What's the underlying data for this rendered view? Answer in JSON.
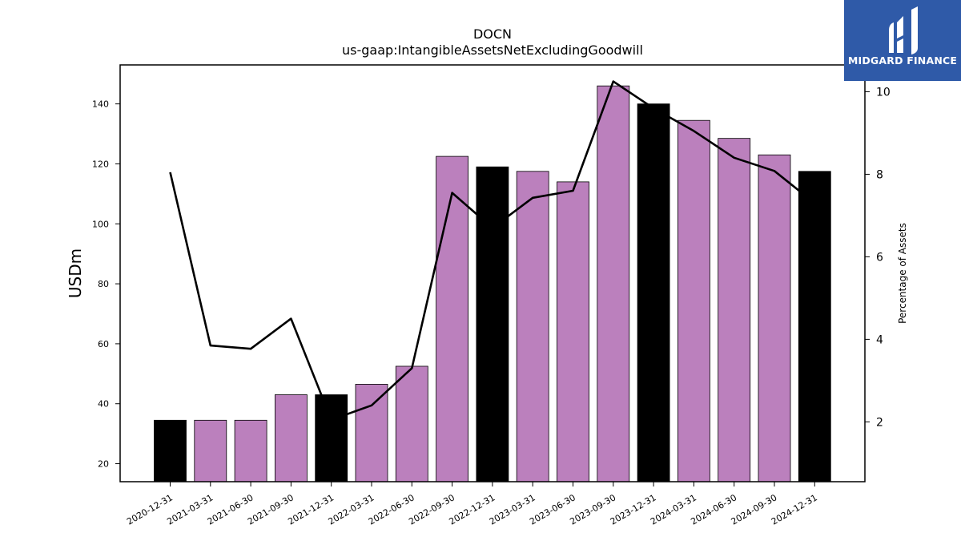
{
  "chart_data": {
    "type": "bar",
    "title": "DOCN",
    "subtitle": "us-gaap:IntangibleAssetsNetExcludingGoodwill",
    "ylabel": "USDm",
    "y2label": "Percentage of Assets",
    "ylim": [
      14,
      153
    ],
    "y2lim": [
      0.55,
      10.65
    ],
    "yticks": [
      20,
      40,
      60,
      80,
      100,
      120,
      140
    ],
    "y2ticks": [
      2,
      4,
      6,
      8,
      10
    ],
    "categories": [
      "2020-12-31",
      "2021-03-31",
      "2021-06-30",
      "2021-09-30",
      "2021-12-31",
      "2022-03-31",
      "2022-06-30",
      "2022-09-30",
      "2022-12-31",
      "2023-03-31",
      "2023-06-30",
      "2023-09-30",
      "2023-12-31",
      "2024-03-31",
      "2024-06-30",
      "2024-09-30",
      "2024-12-31"
    ],
    "series": [
      {
        "type": "bar",
        "values": [
          34.5,
          34.5,
          34.5,
          43,
          43,
          46.5,
          52.5,
          122.5,
          119,
          117.5,
          114,
          146,
          140,
          134.5,
          128.5,
          123,
          117.5
        ],
        "colors": [
          "#000000",
          "#bb80bd",
          "#bb80bd",
          "#bb80bd",
          "#000000",
          "#bb80bd",
          "#bb80bd",
          "#bb80bd",
          "#000000",
          "#bb80bd",
          "#bb80bd",
          "#bb80bd",
          "#000000",
          "#bb80bd",
          "#bb80bd",
          "#bb80bd",
          "#000000"
        ]
      },
      {
        "type": "line",
        "axis": "right",
        "color": "#000000",
        "values": [
          8.05,
          3.85,
          3.77,
          4.5,
          2.05,
          2.4,
          3.3,
          7.55,
          6.7,
          7.43,
          7.6,
          10.25,
          9.6,
          9.05,
          8.4,
          8.08,
          7.3
        ]
      }
    ],
    "grid": false,
    "legend": "none"
  },
  "logo": {
    "text": "MIDGARD FINANCE",
    "color": "#2f5aa8"
  }
}
